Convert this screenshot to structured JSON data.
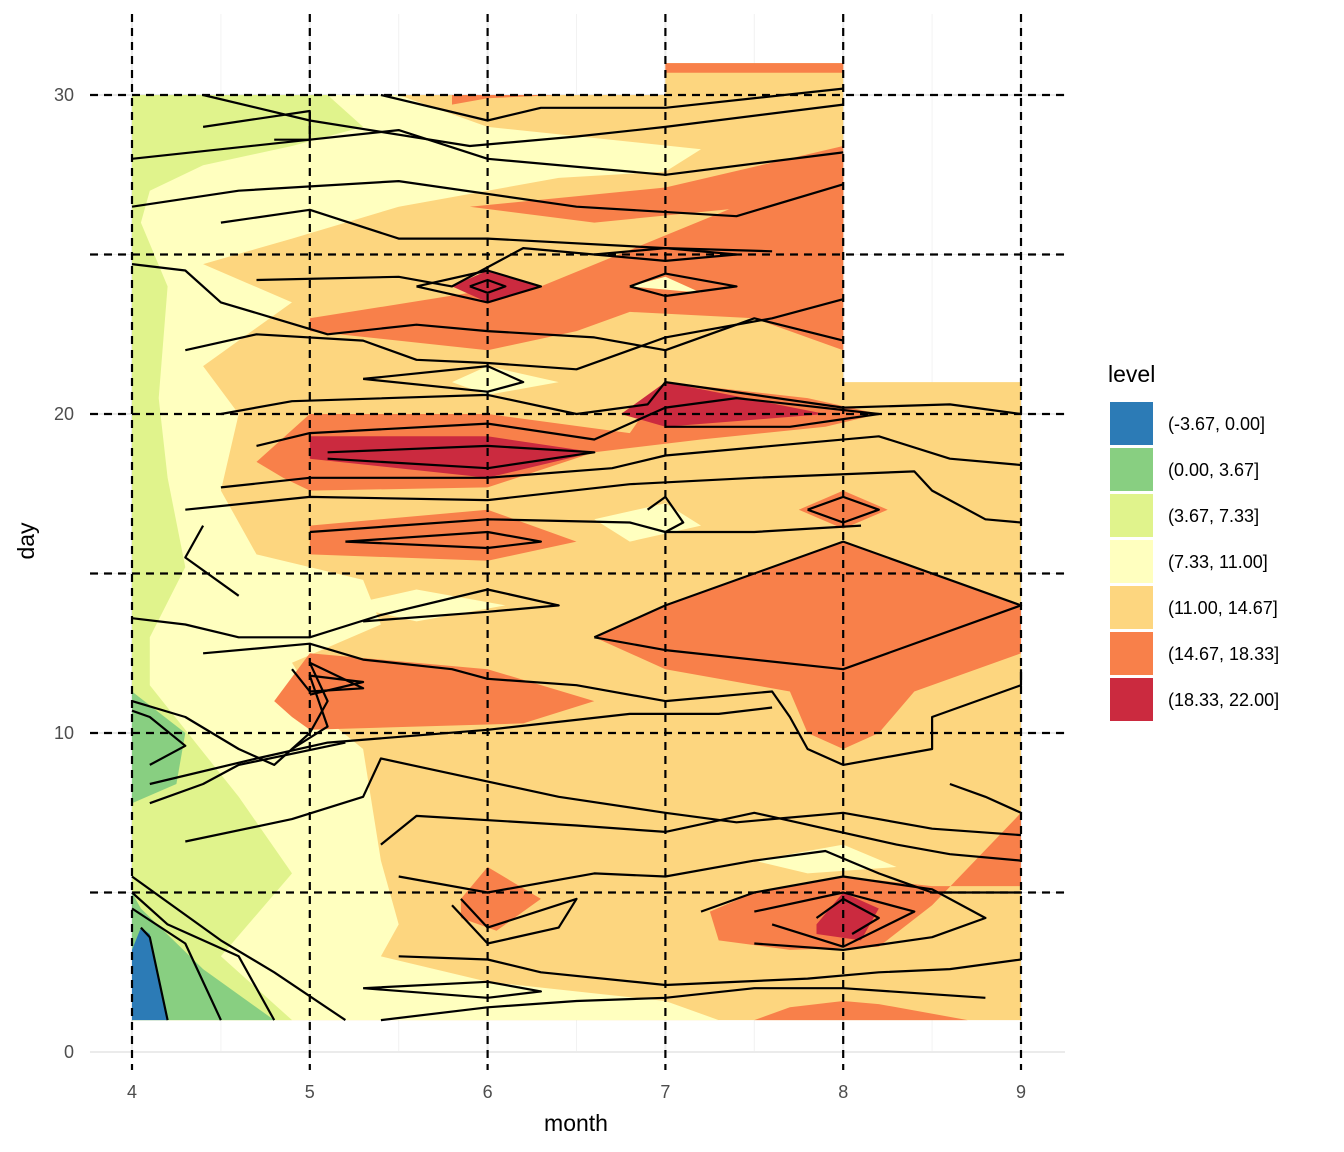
{
  "chart_data": {
    "type": "contour",
    "xlabel": "month",
    "ylabel": "day",
    "x_ticks": [
      4,
      5,
      6,
      7,
      8,
      9
    ],
    "y_ticks": [
      0,
      10,
      20,
      30
    ],
    "xlim": [
      3.77,
      9.25
    ],
    "ylim": [
      -0.3,
      31.8
    ],
    "grid": true,
    "dashed_reference_lines": {
      "x": [
        4,
        5,
        6,
        7,
        8,
        9
      ],
      "y": [
        5,
        10,
        15,
        20,
        25,
        30
      ]
    },
    "legend": {
      "title": "level",
      "position": "right",
      "items": [
        {
          "label": "(-3.67, 0.00]",
          "color": "#2c7bb6"
        },
        {
          "label": "(0.00, 3.67]",
          "color": "#88cf81"
        },
        {
          "label": "(3.67, 7.33]",
          "color": "#e0f38c"
        },
        {
          "label": "(7.33, 11.00]",
          "color": "#ffffbf"
        },
        {
          "label": "(11.00, 14.67]",
          "color": "#fdd67f"
        },
        {
          "label": "(14.67, 18.33]",
          "color": "#f8804a"
        },
        {
          "label": "(18.33, 22.00]",
          "color": "#cb2a3f"
        }
      ]
    }
  }
}
